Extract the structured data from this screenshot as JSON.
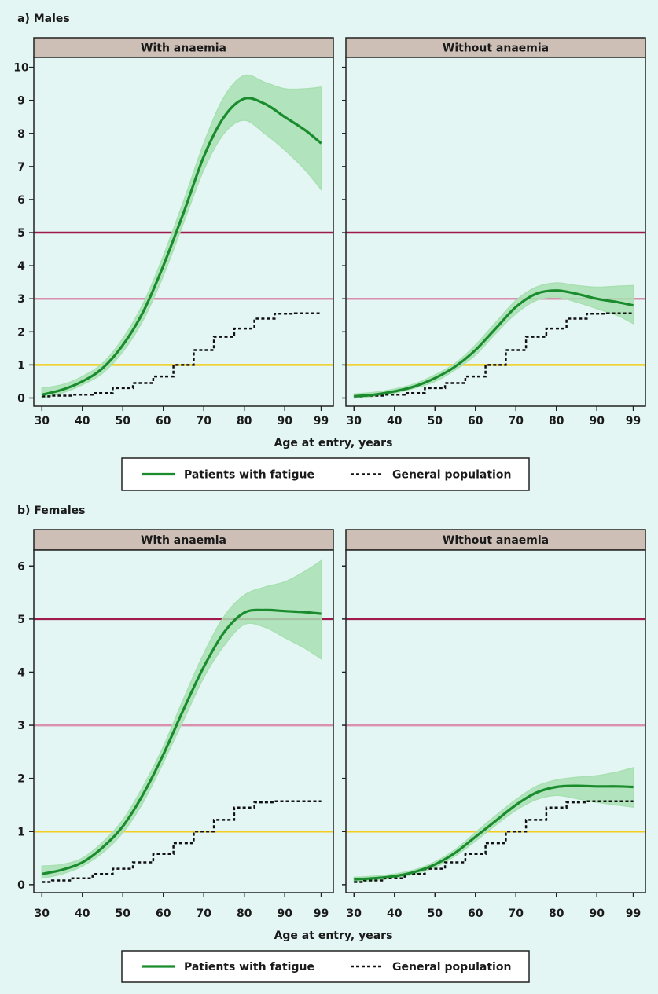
{
  "colors": {
    "background": "#e3f6f4",
    "strip": "#cdbfb6",
    "fatigue_line": "#1a8c2e",
    "fatigue_band": "#a8e0b2",
    "population_line": "#111111",
    "ref_5": "#9e1a4a",
    "ref_3": "#d98fae",
    "ref_1": "#f2cc1f"
  },
  "legend": {
    "fatigue": "Patients with fatigue",
    "population": "General population"
  },
  "chart_data": [
    {
      "type": "line",
      "section_title": "a) Males",
      "xlabel": "Age at entry, years",
      "x_ticks": [
        30,
        40,
        50,
        60,
        70,
        80,
        90,
        99
      ],
      "xlim": [
        28,
        102
      ],
      "ylim": [
        -0.25,
        10.3
      ],
      "y_ticks": [
        0,
        1,
        2,
        3,
        4,
        5,
        6,
        7,
        8,
        9,
        10
      ],
      "reference_lines": [
        5,
        3,
        1
      ],
      "panels": [
        {
          "strip_label": "With anaemia",
          "fatigue": {
            "x": [
              30,
              35,
              40,
              45,
              50,
              55,
              60,
              65,
              70,
              75,
              80,
              85,
              90,
              95,
              99
            ],
            "y": [
              0.1,
              0.25,
              0.5,
              0.9,
              1.6,
              2.6,
              4.0,
              5.6,
              7.3,
              8.5,
              9.05,
              8.9,
              8.5,
              8.1,
              7.7
            ],
            "lower": [
              0.0,
              0.15,
              0.4,
              0.75,
              1.4,
              2.35,
              3.7,
              5.3,
              6.9,
              8.0,
              8.4,
              8.0,
              7.5,
              6.9,
              6.3
            ],
            "upper": [
              0.3,
              0.4,
              0.65,
              1.05,
              1.8,
              2.85,
              4.3,
              5.95,
              7.7,
              9.1,
              9.75,
              9.55,
              9.35,
              9.35,
              9.4
            ]
          },
          "population": {
            "x": [
              30,
              35,
              40,
              45,
              50,
              55,
              60,
              65,
              70,
              75,
              80,
              85,
              90,
              95,
              99
            ],
            "y": [
              0.05,
              0.07,
              0.1,
              0.15,
              0.3,
              0.45,
              0.65,
              1.0,
              1.45,
              1.85,
              2.1,
              2.4,
              2.55,
              2.56,
              2.56
            ]
          }
        },
        {
          "strip_label": "Without anaemia",
          "fatigue": {
            "x": [
              30,
              35,
              40,
              45,
              50,
              55,
              60,
              65,
              70,
              75,
              80,
              85,
              90,
              95,
              99
            ],
            "y": [
              0.05,
              0.1,
              0.2,
              0.35,
              0.6,
              0.95,
              1.45,
              2.1,
              2.75,
              3.15,
              3.25,
              3.15,
              3.0,
              2.9,
              2.8
            ],
            "lower": [
              0.0,
              0.05,
              0.15,
              0.3,
              0.5,
              0.85,
              1.3,
              1.95,
              2.55,
              2.95,
              3.05,
              2.9,
              2.7,
              2.5,
              2.25
            ],
            "upper": [
              0.12,
              0.17,
              0.27,
              0.43,
              0.7,
              1.05,
              1.6,
              2.28,
              2.95,
              3.35,
              3.48,
              3.4,
              3.35,
              3.38,
              3.4
            ]
          },
          "population": {
            "x": [
              30,
              35,
              40,
              45,
              50,
              55,
              60,
              65,
              70,
              75,
              80,
              85,
              90,
              95,
              99
            ],
            "y": [
              0.05,
              0.07,
              0.1,
              0.15,
              0.3,
              0.45,
              0.65,
              1.0,
              1.45,
              1.85,
              2.1,
              2.4,
              2.55,
              2.56,
              2.56
            ]
          }
        }
      ]
    },
    {
      "type": "line",
      "section_title": "b) Females",
      "xlabel": "Age at entry, years",
      "x_ticks": [
        30,
        40,
        50,
        60,
        70,
        80,
        90,
        99
      ],
      "xlim": [
        28,
        102
      ],
      "ylim": [
        -0.15,
        6.3
      ],
      "y_ticks": [
        0,
        1,
        2,
        3,
        4,
        5,
        6
      ],
      "reference_lines": [
        5,
        3,
        1
      ],
      "panels": [
        {
          "strip_label": "With anaemia",
          "fatigue": {
            "x": [
              30,
              35,
              40,
              45,
              50,
              55,
              60,
              65,
              70,
              75,
              80,
              85,
              90,
              95,
              99
            ],
            "y": [
              0.2,
              0.28,
              0.42,
              0.7,
              1.1,
              1.7,
              2.45,
              3.3,
              4.1,
              4.75,
              5.12,
              5.17,
              5.15,
              5.13,
              5.1
            ],
            "lower": [
              0.12,
              0.2,
              0.35,
              0.6,
              0.98,
              1.55,
              2.3,
              3.1,
              3.9,
              4.5,
              4.9,
              4.85,
              4.65,
              4.45,
              4.25
            ],
            "upper": [
              0.35,
              0.38,
              0.5,
              0.8,
              1.22,
              1.85,
              2.6,
              3.5,
              4.35,
              5.05,
              5.45,
              5.6,
              5.7,
              5.9,
              6.1
            ]
          },
          "population": {
            "x": [
              30,
              35,
              40,
              45,
              50,
              55,
              60,
              65,
              70,
              75,
              80,
              85,
              90,
              95,
              99
            ],
            "y": [
              0.05,
              0.08,
              0.12,
              0.2,
              0.3,
              0.42,
              0.58,
              0.78,
              1.0,
              1.22,
              1.45,
              1.55,
              1.57,
              1.57,
              1.57
            ]
          }
        },
        {
          "strip_label": "Without anaemia",
          "fatigue": {
            "x": [
              30,
              35,
              40,
              45,
              50,
              55,
              60,
              65,
              70,
              75,
              80,
              85,
              90,
              95,
              99
            ],
            "y": [
              0.1,
              0.12,
              0.16,
              0.24,
              0.38,
              0.6,
              0.9,
              1.2,
              1.5,
              1.73,
              1.84,
              1.86,
              1.85,
              1.85,
              1.84
            ],
            "lower": [
              0.05,
              0.08,
              0.13,
              0.2,
              0.33,
              0.54,
              0.82,
              1.12,
              1.4,
              1.6,
              1.68,
              1.62,
              1.55,
              1.5,
              1.46
            ],
            "upper": [
              0.14,
              0.16,
              0.2,
              0.28,
              0.43,
              0.66,
              0.98,
              1.3,
              1.6,
              1.85,
              1.97,
              2.02,
              2.05,
              2.12,
              2.2
            ]
          },
          "population": {
            "x": [
              30,
              35,
              40,
              45,
              50,
              55,
              60,
              65,
              70,
              75,
              80,
              85,
              90,
              95,
              99
            ],
            "y": [
              0.05,
              0.08,
              0.12,
              0.2,
              0.3,
              0.42,
              0.58,
              0.78,
              1.0,
              1.22,
              1.45,
              1.55,
              1.57,
              1.57,
              1.57
            ]
          }
        }
      ]
    }
  ]
}
